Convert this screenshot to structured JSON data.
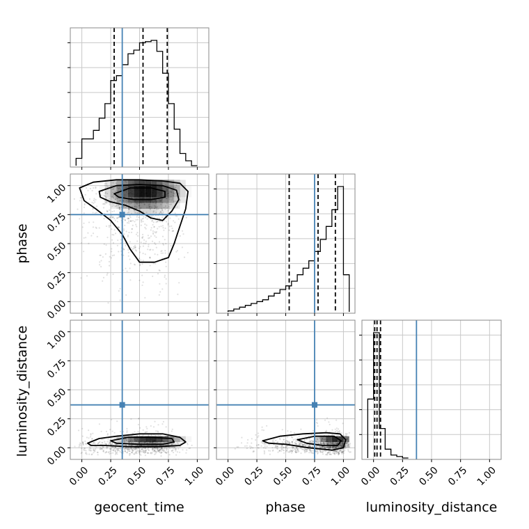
{
  "chart_data": {
    "type": "corner",
    "parameters": [
      "geocent_time",
      "phase",
      "luminosity_distance"
    ],
    "axis_labels": {
      "geocent_time": "geocent_time",
      "phase": "phase",
      "luminosity_distance": "luminosity_distance"
    },
    "ranges": {
      "geocent_time": [
        -0.1,
        1.1
      ],
      "phase": [
        -0.1,
        1.1
      ],
      "luminosity_distance": [
        -0.1,
        1.1
      ]
    },
    "ticks": [
      0.0,
      0.25,
      0.5,
      0.75,
      1.0
    ],
    "tick_labels": [
      "0.00",
      "0.25",
      "0.50",
      "0.75",
      "1.00"
    ],
    "grid": true,
    "colors": {
      "truth": "#4682b4",
      "hist": "#000000",
      "quantile": "#000000",
      "density": "#000000"
    },
    "truths": {
      "geocent_time": 0.35,
      "phase": 0.75,
      "luminosity_distance": 0.37
    },
    "quantiles": {
      "geocent_time": [
        0.28,
        0.53,
        0.74
      ],
      "phase": [
        0.53,
        0.78,
        0.93
      ],
      "luminosity_distance": [
        0.01,
        0.03,
        0.06
      ]
    },
    "histograms": {
      "geocent_time": {
        "edges": [
          -0.05,
          0.0,
          0.05,
          0.1,
          0.15,
          0.2,
          0.25,
          0.3,
          0.35,
          0.4,
          0.45,
          0.5,
          0.55,
          0.6,
          0.65,
          0.7,
          0.75,
          0.8,
          0.85,
          0.9,
          0.95,
          1.0
        ],
        "counts": [
          6,
          22,
          22,
          29,
          39,
          51,
          70,
          74,
          83,
          92,
          95,
          101,
          102,
          103,
          94,
          76,
          51,
          30,
          10,
          4,
          0
        ]
      },
      "phase": {
        "edges": [
          0.0,
          0.05,
          0.1,
          0.15,
          0.2,
          0.25,
          0.3,
          0.35,
          0.4,
          0.45,
          0.5,
          0.55,
          0.6,
          0.65,
          0.7,
          0.75,
          0.8,
          0.85,
          0.9,
          0.95,
          1.0,
          1.05
        ],
        "counts": [
          1,
          3,
          5,
          7,
          9,
          11,
          13,
          17,
          20,
          24,
          28,
          33,
          40,
          47,
          55,
          65,
          78,
          92,
          110,
          135,
          40
        ]
      },
      "luminosity_distance": {
        "edges": [
          -0.05,
          0.0,
          0.05,
          0.1,
          0.15,
          0.2,
          0.25,
          0.3
        ],
        "counts": [
          40,
          85,
          20,
          6,
          2,
          1,
          0
        ]
      }
    },
    "pairs": [
      {
        "x": "geocent_time",
        "y": "phase",
        "contours": [
          [
            [
              -0.02,
              0.98
            ],
            [
              0.1,
              1.03
            ],
            [
              0.3,
              1.05
            ],
            [
              0.5,
              1.05
            ],
            [
              0.7,
              1.04
            ],
            [
              0.85,
              1.02
            ],
            [
              0.92,
              0.95
            ],
            [
              0.9,
              0.8
            ],
            [
              0.85,
              0.65
            ],
            [
              0.8,
              0.5
            ],
            [
              0.75,
              0.38
            ],
            [
              0.63,
              0.34
            ],
            [
              0.5,
              0.34
            ],
            [
              0.42,
              0.45
            ],
            [
              0.35,
              0.58
            ],
            [
              0.25,
              0.7
            ],
            [
              0.12,
              0.8
            ],
            [
              0.02,
              0.87
            ]
          ],
          [
            [
              0.15,
              0.95
            ],
            [
              0.3,
              1.0
            ],
            [
              0.5,
              1.01
            ],
            [
              0.7,
              1.0
            ],
            [
              0.82,
              0.96
            ],
            [
              0.84,
              0.88
            ],
            [
              0.78,
              0.78
            ],
            [
              0.7,
              0.7
            ],
            [
              0.6,
              0.72
            ],
            [
              0.5,
              0.78
            ],
            [
              0.38,
              0.83
            ],
            [
              0.25,
              0.86
            ],
            [
              0.16,
              0.9
            ]
          ],
          [
            [
              0.28,
              0.93
            ],
            [
              0.42,
              0.98
            ],
            [
              0.6,
              0.98
            ],
            [
              0.72,
              0.95
            ],
            [
              0.72,
              0.9
            ],
            [
              0.6,
              0.88
            ],
            [
              0.45,
              0.88
            ],
            [
              0.32,
              0.9
            ]
          ]
        ]
      },
      {
        "x": "geocent_time",
        "y": "luminosity_distance",
        "contours": [
          [
            [
              0.05,
              0.04
            ],
            [
              0.15,
              0.08
            ],
            [
              0.3,
              0.1
            ],
            [
              0.5,
              0.12
            ],
            [
              0.7,
              0.12
            ],
            [
              0.85,
              0.09
            ],
            [
              0.9,
              0.05
            ],
            [
              0.85,
              0.02
            ],
            [
              0.65,
              0.01
            ],
            [
              0.4,
              0.01
            ],
            [
              0.2,
              0.02
            ],
            [
              0.08,
              0.02
            ]
          ],
          [
            [
              0.25,
              0.06
            ],
            [
              0.4,
              0.09
            ],
            [
              0.6,
              0.09
            ],
            [
              0.78,
              0.08
            ],
            [
              0.8,
              0.05
            ],
            [
              0.7,
              0.03
            ],
            [
              0.5,
              0.03
            ],
            [
              0.3,
              0.04
            ]
          ]
        ]
      },
      {
        "x": "phase",
        "y": "luminosity_distance",
        "contours": [
          [
            [
              0.3,
              0.06
            ],
            [
              0.45,
              0.1
            ],
            [
              0.65,
              0.12
            ],
            [
              0.85,
              0.13
            ],
            [
              0.97,
              0.12
            ],
            [
              1.02,
              0.07
            ],
            [
              1.0,
              0.0
            ],
            [
              0.9,
              -0.02
            ],
            [
              0.7,
              0.0
            ],
            [
              0.5,
              0.03
            ],
            [
              0.35,
              0.04
            ]
          ],
          [
            [
              0.6,
              0.07
            ],
            [
              0.75,
              0.1
            ],
            [
              0.92,
              0.1
            ],
            [
              0.98,
              0.06
            ],
            [
              0.95,
              0.02
            ],
            [
              0.82,
              0.02
            ],
            [
              0.68,
              0.04
            ]
          ]
        ]
      }
    ]
  }
}
